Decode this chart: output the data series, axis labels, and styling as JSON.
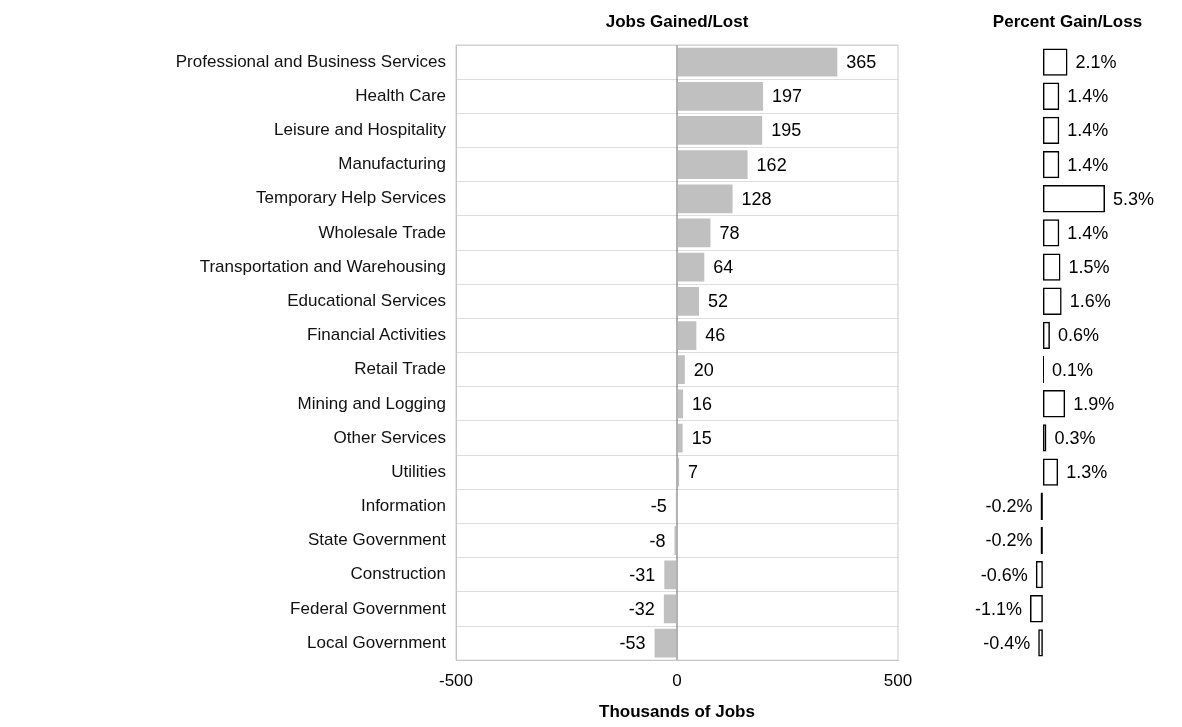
{
  "chart_data": [
    {
      "type": "bar",
      "orientation": "horizontal",
      "title": "Jobs Gained/Lost",
      "xlabel": "Thousands of Jobs",
      "categories": [
        "Professional and Business Services",
        "Health Care",
        "Leisure and Hospitality",
        "Manufacturing",
        "Temporary Help Services",
        "Wholesale Trade",
        "Transportation and Warehousing",
        "Educational Services",
        "Financial Activities",
        "Retail Trade",
        "Mining and Logging",
        "Other Services",
        "Utilities",
        "Information",
        "State Government",
        "Construction",
        "Federal Government",
        "Local Government"
      ],
      "values": [
        365,
        197,
        195,
        162,
        128,
        78,
        64,
        52,
        46,
        20,
        16,
        15,
        7,
        -5,
        -8,
        -31,
        -32,
        -53
      ],
      "color": "#c0c0c0",
      "xlim": [
        -500,
        500
      ],
      "xticks": [
        -500,
        0,
        500
      ],
      "grid": "y",
      "data_labels": true
    },
    {
      "type": "bar",
      "orientation": "horizontal",
      "title": "Percent Gain/Loss",
      "categories": [
        null,
        null,
        null,
        null,
        null,
        null,
        null,
        null,
        null,
        null,
        null,
        null,
        null,
        null,
        null,
        null,
        null,
        null
      ],
      "values": [
        2.1,
        1.4,
        1.4,
        1.4,
        5.3,
        1.4,
        1.5,
        1.6,
        0.6,
        0.1,
        1.9,
        0.3,
        1.3,
        -0.2,
        -0.2,
        -0.6,
        -1.1,
        -0.4
      ],
      "value_labels": [
        "2.1%",
        "1.4%",
        "1.4%",
        "1.4%",
        "5.3%",
        "1.4%",
        "1.5%",
        "1.6%",
        "0.6%",
        "0.1%",
        "1.9%",
        "0.3%",
        "1.3%",
        "-0.2%",
        "-0.2%",
        "-0.6%",
        "-1.1%",
        "-0.4%"
      ],
      "color": "#000000"
    }
  ]
}
